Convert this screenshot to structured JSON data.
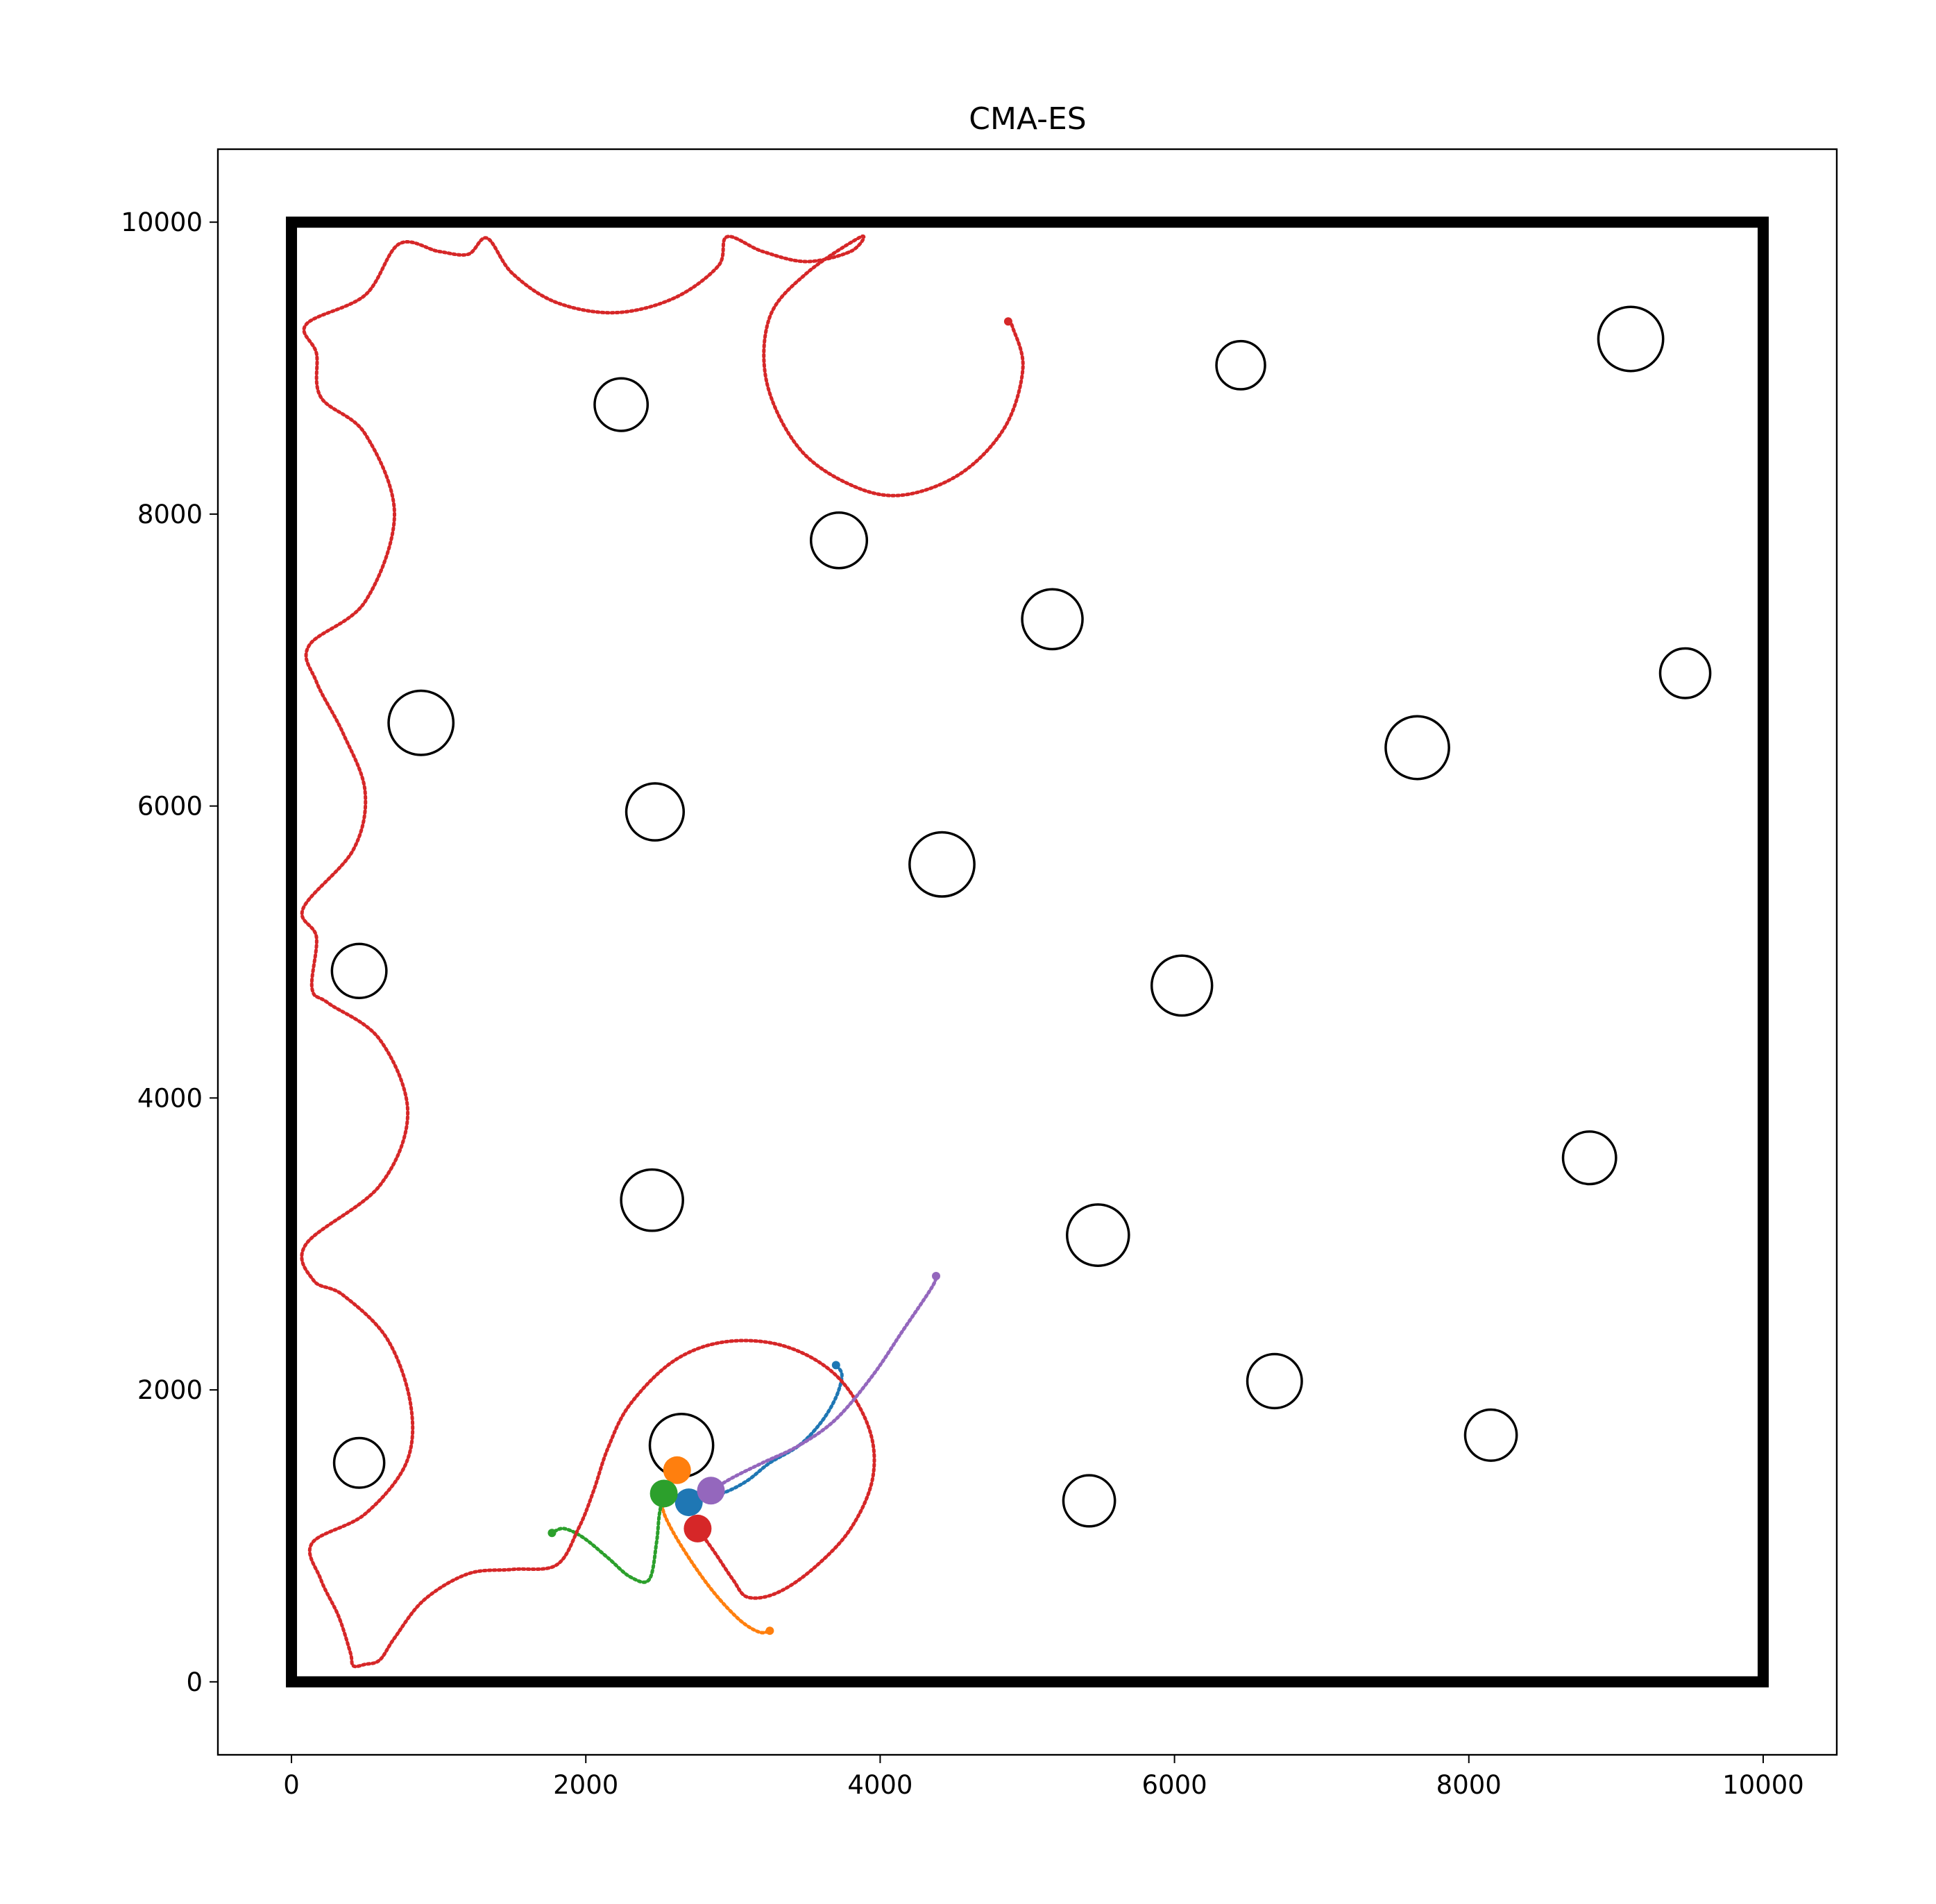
{
  "chart_data": {
    "type": "scatter",
    "title": "CMA-ES",
    "xlabel": "",
    "ylabel": "",
    "xlim": [
      -500,
      10500
    ],
    "ylim": [
      -500,
      10500
    ],
    "x_ticks": [
      0,
      2000,
      4000,
      6000,
      8000,
      10000
    ],
    "y_ticks": [
      0,
      2000,
      4000,
      6000,
      8000,
      10000
    ],
    "x_tick_labels": [
      "0",
      "2000",
      "4000",
      "6000",
      "8000",
      "10000"
    ],
    "y_tick_labels": [
      "0",
      "2000",
      "4000",
      "6000",
      "8000",
      "10000"
    ],
    "grid": false,
    "arena": {
      "x0": 0,
      "y0": 0,
      "x1": 10000,
      "y1": 10000,
      "color": "#000000"
    },
    "obstacles": [
      {
        "x": 2240,
        "y": 8750,
        "r": 180
      },
      {
        "x": 6450,
        "y": 9020,
        "r": 165
      },
      {
        "x": 9100,
        "y": 9200,
        "r": 220
      },
      {
        "x": 3720,
        "y": 7820,
        "r": 190
      },
      {
        "x": 5170,
        "y": 7280,
        "r": 205
      },
      {
        "x": 9470,
        "y": 6910,
        "r": 170
      },
      {
        "x": 880,
        "y": 6570,
        "r": 220
      },
      {
        "x": 7650,
        "y": 6400,
        "r": 215
      },
      {
        "x": 2470,
        "y": 5960,
        "r": 195
      },
      {
        "x": 4420,
        "y": 5600,
        "r": 220
      },
      {
        "x": 460,
        "y": 4870,
        "r": 185
      },
      {
        "x": 6050,
        "y": 4770,
        "r": 205
      },
      {
        "x": 8820,
        "y": 3590,
        "r": 180
      },
      {
        "x": 2450,
        "y": 3300,
        "r": 210
      },
      {
        "x": 5480,
        "y": 3060,
        "r": 210
      },
      {
        "x": 6680,
        "y": 2060,
        "r": 185
      },
      {
        "x": 8150,
        "y": 1690,
        "r": 175
      },
      {
        "x": 2650,
        "y": 1620,
        "r": 215
      },
      {
        "x": 460,
        "y": 1500,
        "r": 170
      },
      {
        "x": 5420,
        "y": 1240,
        "r": 175
      }
    ],
    "series": [
      {
        "color": "#1f77b4",
        "agent": {
          "x": 2700,
          "y": 1230
        },
        "path": [
          [
            2700,
            1230
          ],
          [
            2800,
            1260
          ],
          [
            2950,
            1300
          ],
          [
            3100,
            1380
          ],
          [
            3250,
            1500
          ],
          [
            3450,
            1620
          ],
          [
            3600,
            1780
          ],
          [
            3700,
            1950
          ],
          [
            3740,
            2100
          ],
          [
            3700,
            2170
          ]
        ]
      },
      {
        "color": "#ff7f0e",
        "agent": {
          "x": 2620,
          "y": 1450
        },
        "path": [
          [
            2620,
            1450
          ],
          [
            2540,
            1320
          ],
          [
            2520,
            1200
          ],
          [
            2580,
            1050
          ],
          [
            2720,
            820
          ],
          [
            2880,
            600
          ],
          [
            3050,
            420
          ],
          [
            3180,
            340
          ],
          [
            3250,
            350
          ]
        ]
      },
      {
        "color": "#2ca02c",
        "agent": {
          "x": 2530,
          "y": 1290
        },
        "path": [
          [
            2530,
            1290
          ],
          [
            2500,
            1150
          ],
          [
            2480,
            950
          ],
          [
            2430,
            700
          ],
          [
            2300,
            720
          ],
          [
            2150,
            850
          ],
          [
            1980,
            990
          ],
          [
            1850,
            1050
          ],
          [
            1770,
            1020
          ]
        ]
      },
      {
        "color": "#d62728",
        "agent": {
          "x": 2760,
          "y": 1050
        },
        "path": [
          [
            2760,
            1050
          ],
          [
            2880,
            880
          ],
          [
            3000,
            700
          ],
          [
            3100,
            580
          ],
          [
            3300,
            610
          ],
          [
            3550,
            780
          ],
          [
            3800,
            1050
          ],
          [
            3950,
            1400
          ],
          [
            3920,
            1750
          ],
          [
            3700,
            2100
          ],
          [
            3350,
            2300
          ],
          [
            2950,
            2330
          ],
          [
            2600,
            2200
          ],
          [
            2300,
            1900
          ],
          [
            2150,
            1600
          ],
          [
            2050,
            1300
          ],
          [
            1950,
            1050
          ],
          [
            1800,
            800
          ],
          [
            1500,
            770
          ],
          [
            1200,
            740
          ],
          [
            900,
            560
          ],
          [
            700,
            300
          ],
          [
            600,
            150
          ],
          [
            500,
            120
          ],
          [
            420,
            110
          ],
          [
            400,
            200
          ],
          [
            320,
            450
          ],
          [
            200,
            700
          ],
          [
            140,
            950
          ],
          [
            500,
            1150
          ],
          [
            780,
            1500
          ],
          [
            810,
            1900
          ],
          [
            650,
            2350
          ],
          [
            350,
            2650
          ],
          [
            150,
            2750
          ],
          [
            100,
            3000
          ],
          [
            600,
            3400
          ],
          [
            790,
            3900
          ],
          [
            600,
            4400
          ],
          [
            250,
            4650
          ],
          [
            140,
            4750
          ],
          [
            170,
            5100
          ],
          [
            80,
            5300
          ],
          [
            420,
            5700
          ],
          [
            500,
            6100
          ],
          [
            350,
            6500
          ],
          [
            170,
            6850
          ],
          [
            120,
            7100
          ],
          [
            500,
            7400
          ],
          [
            700,
            8000
          ],
          [
            500,
            8550
          ],
          [
            200,
            8800
          ],
          [
            170,
            9100
          ],
          [
            100,
            9300
          ],
          [
            500,
            9500
          ],
          [
            730,
            9850
          ],
          [
            1000,
            9800
          ],
          [
            1200,
            9780
          ],
          [
            1330,
            9890
          ],
          [
            1500,
            9650
          ],
          [
            1800,
            9450
          ],
          [
            2200,
            9380
          ],
          [
            2600,
            9480
          ],
          [
            2900,
            9700
          ],
          [
            2960,
            9900
          ],
          [
            3200,
            9800
          ],
          [
            3500,
            9730
          ],
          [
            3800,
            9800
          ],
          [
            3870,
            9900
          ],
          [
            3500,
            9650
          ],
          [
            3250,
            9350
          ],
          [
            3230,
            8900
          ],
          [
            3450,
            8450
          ],
          [
            3800,
            8200
          ],
          [
            4150,
            8130
          ],
          [
            4550,
            8280
          ],
          [
            4850,
            8600
          ],
          [
            4970,
            9000
          ],
          [
            4900,
            9280
          ],
          [
            4870,
            9320
          ]
        ]
      },
      {
        "color": "#9467bd",
        "agent": {
          "x": 2850,
          "y": 1310
        },
        "path": [
          [
            2850,
            1310
          ],
          [
            3000,
            1400
          ],
          [
            3200,
            1500
          ],
          [
            3450,
            1620
          ],
          [
            3700,
            1800
          ],
          [
            3950,
            2100
          ],
          [
            4150,
            2400
          ],
          [
            4350,
            2700
          ],
          [
            4380,
            2780
          ]
        ]
      }
    ]
  }
}
